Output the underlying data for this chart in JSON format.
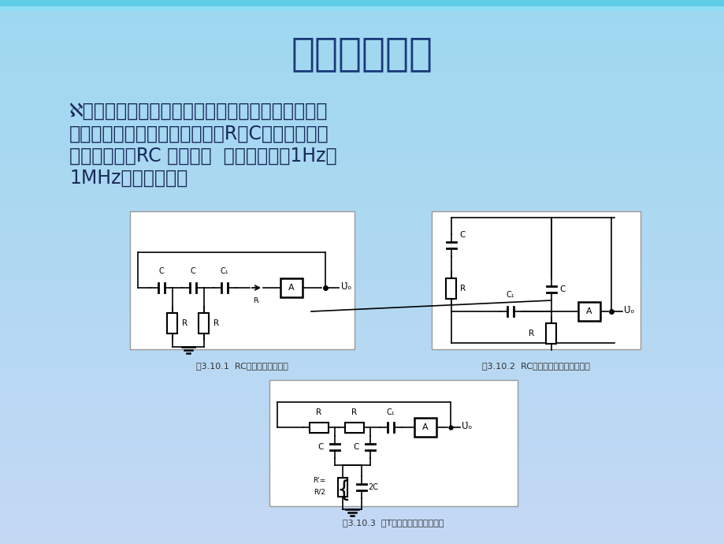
{
  "title": "二、原理说明",
  "title_color": "#1a3a7a",
  "title_fontsize": 36,
  "body_lines": [
    "ℵ从结构上看，正弦波振荡器是没有输入信号的，带",
    "选频网络的正反馈放大器。若用R、C元件组成选频",
    "网络，就称为RC 振荡器，  一般用来产生1Hz～",
    "1MHz的低频信号。"
  ],
  "body_text_color": "#1a2a5a",
  "body_fontsize": 17,
  "fig1_caption": "图3.10.1  RC移相振荡器原理图",
  "fig2_caption": "图3.10.2  RC串并联网络振荡器原理图",
  "fig3_caption": "图3.10.3  双T选频网络振荡器原理图",
  "caption_fontsize": 8,
  "caption_color": "#333333"
}
